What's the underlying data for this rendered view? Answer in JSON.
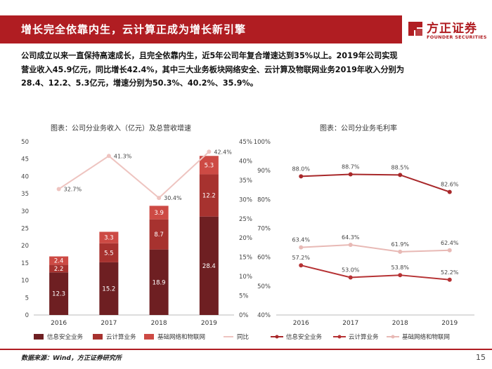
{
  "header": {
    "title": "增长完全依靠内生，云计算正成为增长新引擎"
  },
  "logo": {
    "cn": "方正证券",
    "en": "FOUNDER SECURITIES"
  },
  "summary": {
    "lines": [
      "公司成立以来一直保持高速成长，且完全依靠内生，近5年公司年复合增速达到35%以上。2019年公司实现",
      "营业收入45.9亿元，同比增长42.4%，其中三大业务板块网络安全、云计算及物联网业务2019年收入分别为",
      "28.4、12.2、5.3亿元，增速分别为50.3%、40.2%、35.9%。"
    ]
  },
  "chart_left_title": "图表：公司分业务收入（亿元）及总营收增速",
  "chart_right_title": "图表：公司分业务毛利率",
  "colors": {
    "brand": "#b01d22",
    "seg_security": "#6e1f22",
    "seg_cloud": "#a7322f",
    "seg_iot": "#cd4a44",
    "growth_line": "#eec4c0",
    "line_security": "#a8282a",
    "line_cloud": "#b63234",
    "line_iot": "#e8b9b5"
  },
  "chart_data": [
    {
      "type": "bar",
      "stacked": true,
      "title": "图表：公司分业务收入（亿元）及总营收增速",
      "categories": [
        "2016",
        "2017",
        "2018",
        "2019"
      ],
      "series": [
        {
          "name": "信息安全业务",
          "values": [
            12.3,
            15.2,
            18.9,
            28.4
          ],
          "labels": [
            "12.3",
            "15.2",
            "18.9",
            "28.4"
          ]
        },
        {
          "name": "云计算业务",
          "values": [
            2.2,
            5.5,
            8.7,
            12.2
          ],
          "labels": [
            "2.2",
            "5.5",
            "8.7",
            "12.2"
          ]
        },
        {
          "name": "基础网络和物联网",
          "values": [
            2.4,
            3.3,
            3.9,
            5.3
          ],
          "labels": [
            "2.4",
            "3.3",
            "3.9",
            "5.3"
          ]
        }
      ],
      "line": {
        "name": "同比",
        "values": [
          32.7,
          41.3,
          30.4,
          42.4
        ],
        "labels": [
          "32.7%",
          "41.3%",
          "30.4%",
          "42.4%"
        ],
        "axis": "right"
      },
      "ylim": [
        0,
        50
      ],
      "yticks": [
        "0",
        "5",
        "10",
        "15",
        "20",
        "25",
        "30",
        "35",
        "40",
        "45",
        "50"
      ],
      "y2lim": [
        0,
        45
      ],
      "y2ticks": [
        "0%",
        "5%",
        "10%",
        "15%",
        "20%",
        "25%",
        "30%",
        "35%",
        "40%",
        "45%"
      ],
      "legend": [
        "信息安全业务",
        "云计算业务",
        "基础网络和物联网",
        "同比"
      ],
      "legend_position": "bottom"
    },
    {
      "type": "line",
      "title": "图表：公司分业务毛利率",
      "categories": [
        "2016",
        "2017",
        "2018",
        "2019"
      ],
      "series": [
        {
          "name": "信息安全业务",
          "values": [
            88.0,
            88.7,
            88.5,
            82.6
          ],
          "labels": [
            "88.0%",
            "88.7%",
            "88.5%",
            "82.6%"
          ]
        },
        {
          "name": "云计算业务",
          "values": [
            57.2,
            53.0,
            53.8,
            52.2
          ],
          "labels": [
            "57.2%",
            "53.0%",
            "53.8%",
            "52.2%"
          ]
        },
        {
          "name": "基础网络和物联网",
          "values": [
            63.4,
            64.3,
            61.9,
            62.4
          ],
          "labels": [
            "63.4%",
            "64.3%",
            "61.9%",
            "62.4%"
          ]
        }
      ],
      "ylim": [
        40,
        100
      ],
      "yticks": [
        "40%",
        "50%",
        "60%",
        "70%",
        "80%",
        "90%",
        "100%"
      ],
      "legend": [
        "信息安全业务",
        "云计算业务",
        "基础网络和物联网"
      ],
      "legend_position": "bottom"
    }
  ],
  "footer": {
    "source": "数据来源：Wind，方正证券研究所",
    "page": "15"
  }
}
